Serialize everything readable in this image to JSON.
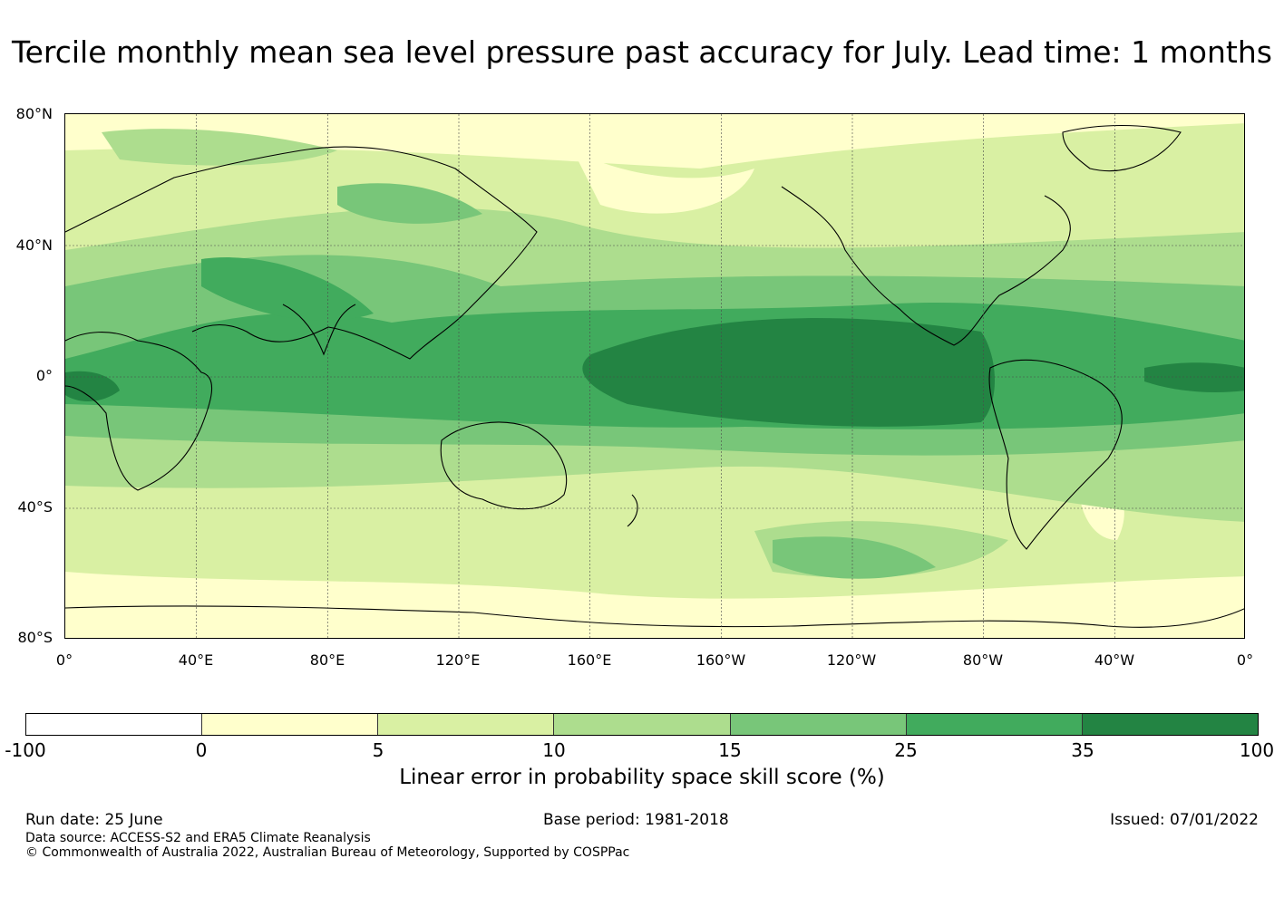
{
  "title": "Tercile monthly mean sea level pressure past accuracy for July. Lead time: 1 months",
  "map": {
    "lat_labels": [
      "80°N",
      "40°N",
      "0°",
      "40°S",
      "80°S"
    ],
    "lon_labels": [
      "0°",
      "40°E",
      "80°E",
      "120°E",
      "160°E",
      "160°W",
      "120°W",
      "80°W",
      "40°W",
      "0°"
    ],
    "projection": "plate carree, 0° to 360° longitude, 80°S to 80°N",
    "background_color": "#d9f0a3"
  },
  "colorbar": {
    "ticks": [
      "-100",
      "0",
      "5",
      "10",
      "15",
      "25",
      "35",
      "100"
    ],
    "colors": [
      "#ffffff",
      "#ffffcc",
      "#d9f0a3",
      "#addd8e",
      "#78c679",
      "#41ab5d",
      "#238443"
    ],
    "label": "Linear error in probability space skill score (%)"
  },
  "footer": {
    "run_date": "Run date: 25 June",
    "base_period": "Base period: 1981-2018",
    "issued": "Issued: 07/01/2022",
    "data_source": "Data source: ACCESS-S2 and ERA5 Climate Reanalysis",
    "copyright": "© Commonwealth of Australia 2022, Australian Bureau of Meteorology, Supported by COSPPac"
  }
}
